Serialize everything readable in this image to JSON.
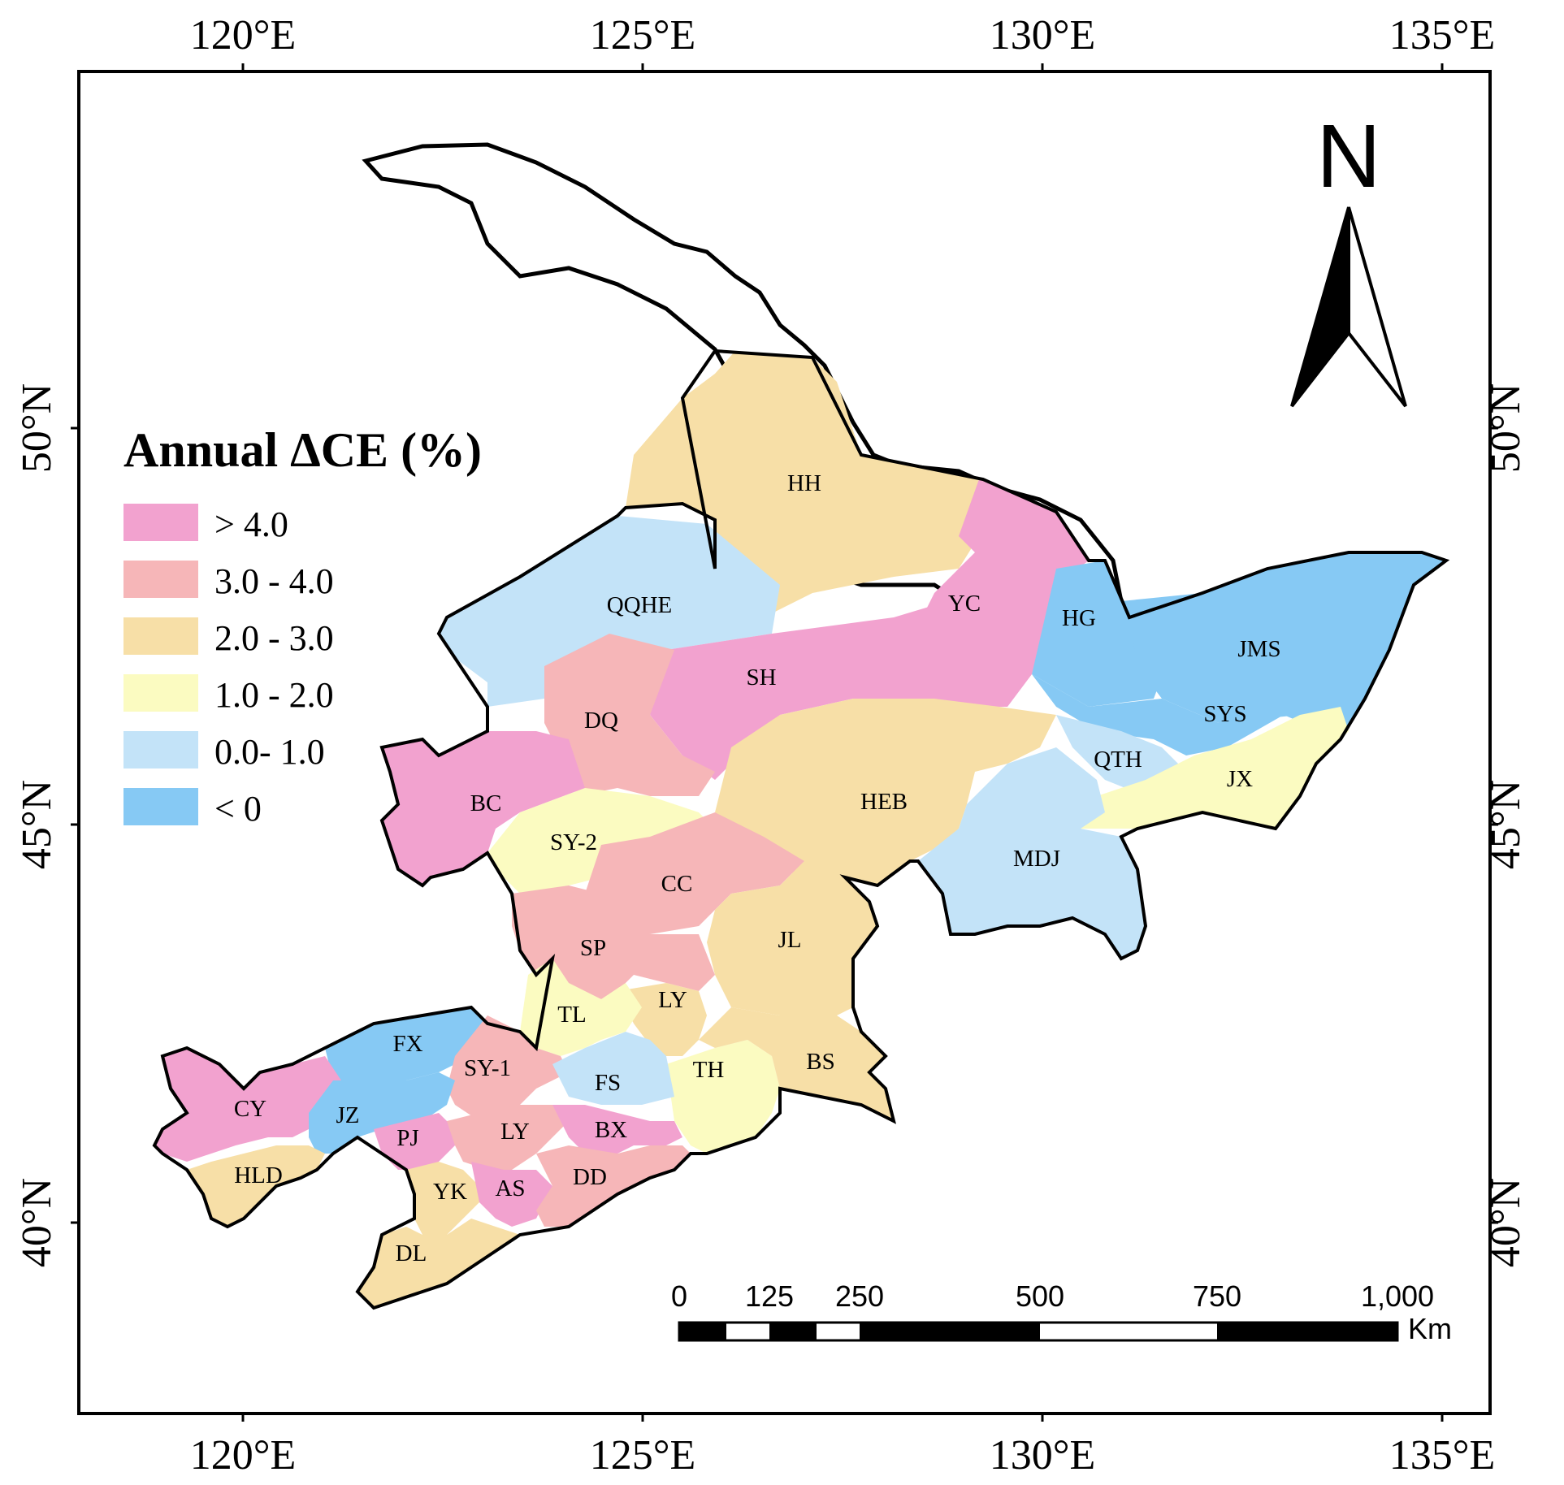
{
  "map": {
    "legend": {
      "title": "Annual ΔCE (%)",
      "classes": [
        {
          "label": "> 4.0",
          "color": "#f2a2cf"
        },
        {
          "label": "3.0 - 4.0",
          "color": "#f6b6b8"
        },
        {
          "label": "2.0 - 3.0",
          "color": "#f7dfa7"
        },
        {
          "label": "1.0 - 2.0",
          "color": "#fbfbc1"
        },
        {
          "label": "0.0- 1.0",
          "color": "#c3e3f8"
        },
        {
          "label": "< 0",
          "color": "#86c9f4"
        }
      ]
    },
    "lon_ticks": [
      "120°E",
      "125°E",
      "130°E",
      "135°E"
    ],
    "lat_ticks": [
      "50°N",
      "45°N",
      "40°N"
    ],
    "north_arrow": {
      "label": "N",
      "icon": "north-arrow-icon"
    },
    "scale_bar": {
      "labels": [
        "0",
        "125",
        "250",
        "500",
        "750",
        "1,000"
      ],
      "unit": "Km"
    },
    "regions": [
      {
        "code": "HH",
        "class": "2.0 - 3.0"
      },
      {
        "code": "QQHE",
        "class": "0.0- 1.0"
      },
      {
        "code": "YC",
        "class": "> 4.0"
      },
      {
        "code": "HG",
        "class": "< 0"
      },
      {
        "code": "JMS",
        "class": "< 0"
      },
      {
        "code": "SH",
        "class": "> 4.0"
      },
      {
        "code": "DQ",
        "class": "3.0 - 4.0"
      },
      {
        "code": "SYS",
        "class": "< 0"
      },
      {
        "code": "QTH",
        "class": "0.0- 1.0"
      },
      {
        "code": "JX",
        "class": "1.0 - 2.0"
      },
      {
        "code": "BC",
        "class": "> 4.0"
      },
      {
        "code": "HEB",
        "class": "2.0 - 3.0"
      },
      {
        "code": "SY-2",
        "class": "1.0 - 2.0"
      },
      {
        "code": "CC",
        "class": "3.0 - 4.0"
      },
      {
        "code": "MDJ",
        "class": "0.0- 1.0"
      },
      {
        "code": "JL",
        "class": "2.0 - 3.0"
      },
      {
        "code": "SP",
        "class": "3.0 - 4.0"
      },
      {
        "code": "LY",
        "class": "2.0 - 3.0"
      },
      {
        "code": "TL",
        "class": "1.0 - 2.0"
      },
      {
        "code": "FX",
        "class": "< 0"
      },
      {
        "code": "SY-1",
        "class": "3.0 - 4.0"
      },
      {
        "code": "TH",
        "class": "1.0 - 2.0"
      },
      {
        "code": "BS",
        "class": "2.0 - 3.0"
      },
      {
        "code": "FS",
        "class": "0.0- 1.0"
      },
      {
        "code": "CY",
        "class": "> 4.0"
      },
      {
        "code": "JZ",
        "class": "< 0"
      },
      {
        "code": "PJ",
        "class": "> 4.0"
      },
      {
        "code": "LY",
        "class": "3.0 - 4.0"
      },
      {
        "code": "BX",
        "class": "> 4.0"
      },
      {
        "code": "HLD",
        "class": "2.0 - 3.0"
      },
      {
        "code": "YK",
        "class": "2.0 - 3.0"
      },
      {
        "code": "AS",
        "class": "> 4.0"
      },
      {
        "code": "DD",
        "class": "3.0 - 4.0"
      },
      {
        "code": "DL",
        "class": "2.0 - 3.0"
      }
    ]
  }
}
